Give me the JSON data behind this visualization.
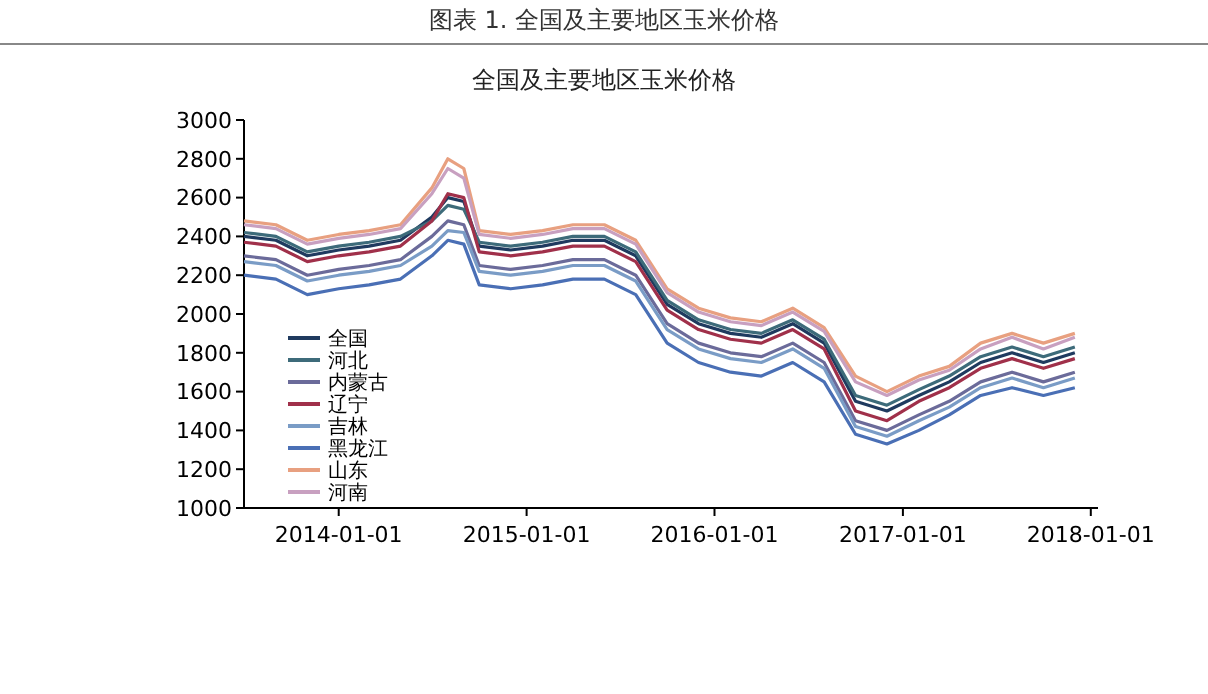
{
  "chart_data": {
    "type": "line",
    "title": "图表 1. 全国及主要地区玉米价格",
    "subtitle": "全国及主要地区玉米价格",
    "x": [
      "2013-07",
      "2013-09",
      "2013-11",
      "2014-01",
      "2014-03",
      "2014-05",
      "2014-07",
      "2014-08",
      "2014-09",
      "2014-10",
      "2014-12",
      "2015-02",
      "2015-04",
      "2015-06",
      "2015-08",
      "2015-10",
      "2015-12",
      "2016-02",
      "2016-04",
      "2016-06",
      "2016-08",
      "2016-10",
      "2016-12",
      "2017-02",
      "2017-04",
      "2017-06",
      "2017-08",
      "2017-10",
      "2017-12"
    ],
    "xlim": [
      "2013-07-01",
      "2018-01-15"
    ],
    "xticks": [
      "2014-01-01",
      "2015-01-01",
      "2016-01-01",
      "2017-01-01",
      "2018-01-01"
    ],
    "ylim": [
      1000,
      3000
    ],
    "yticks": [
      1000,
      1200,
      1400,
      1600,
      1800,
      2000,
      2200,
      2400,
      2600,
      2800,
      3000
    ],
    "legend": "bottom left",
    "grid": false,
    "line_style": "solid",
    "series": [
      {
        "name": "全国",
        "color": "#1f3a5f",
        "values": [
          2400,
          2380,
          2300,
          2330,
          2350,
          2380,
          2500,
          2600,
          2580,
          2350,
          2330,
          2350,
          2380,
          2380,
          2300,
          2050,
          1950,
          1900,
          1880,
          1950,
          1850,
          1550,
          1500,
          1580,
          1650,
          1750,
          1800,
          1750,
          1800
        ]
      },
      {
        "name": "河北",
        "color": "#3d6b7a",
        "values": [
          2420,
          2400,
          2320,
          2350,
          2370,
          2400,
          2480,
          2560,
          2540,
          2370,
          2350,
          2370,
          2400,
          2400,
          2320,
          2070,
          1970,
          1920,
          1900,
          1970,
          1870,
          1580,
          1530,
          1610,
          1680,
          1780,
          1830,
          1780,
          1830
        ]
      },
      {
        "name": "内蒙古",
        "color": "#6b6b9a",
        "values": [
          2300,
          2280,
          2200,
          2230,
          2250,
          2280,
          2400,
          2480,
          2460,
          2250,
          2230,
          2250,
          2280,
          2280,
          2200,
          1950,
          1850,
          1800,
          1780,
          1850,
          1750,
          1450,
          1400,
          1480,
          1550,
          1650,
          1700,
          1650,
          1700
        ]
      },
      {
        "name": "辽宁",
        "color": "#a0304a",
        "values": [
          2370,
          2350,
          2270,
          2300,
          2320,
          2350,
          2480,
          2620,
          2600,
          2320,
          2300,
          2320,
          2350,
          2350,
          2270,
          2020,
          1920,
          1870,
          1850,
          1920,
          1820,
          1500,
          1450,
          1550,
          1620,
          1720,
          1770,
          1720,
          1770
        ]
      },
      {
        "name": "吉林",
        "color": "#7a9cc6",
        "values": [
          2270,
          2250,
          2170,
          2200,
          2220,
          2250,
          2350,
          2430,
          2420,
          2220,
          2200,
          2220,
          2250,
          2250,
          2170,
          1920,
          1820,
          1770,
          1750,
          1820,
          1720,
          1420,
          1370,
          1450,
          1520,
          1620,
          1670,
          1620,
          1670
        ]
      },
      {
        "name": "黑龙江",
        "color": "#4a6fb5",
        "values": [
          2200,
          2180,
          2100,
          2130,
          2150,
          2180,
          2300,
          2380,
          2360,
          2150,
          2130,
          2150,
          2180,
          2180,
          2100,
          1850,
          1750,
          1700,
          1680,
          1750,
          1650,
          1380,
          1330,
          1400,
          1480,
          1580,
          1620,
          1580,
          1620
        ]
      },
      {
        "name": "山东",
        "color": "#e8a080",
        "values": [
          2480,
          2460,
          2380,
          2410,
          2430,
          2460,
          2650,
          2800,
          2750,
          2430,
          2410,
          2430,
          2460,
          2460,
          2380,
          2130,
          2030,
          1980,
          1960,
          2030,
          1930,
          1680,
          1600,
          1680,
          1730,
          1850,
          1900,
          1850,
          1900
        ]
      },
      {
        "name": "河南",
        "color": "#c8a0c0",
        "values": [
          2460,
          2440,
          2360,
          2390,
          2410,
          2440,
          2620,
          2750,
          2700,
          2410,
          2390,
          2410,
          2440,
          2440,
          2360,
          2110,
          2010,
          1960,
          1940,
          2010,
          1910,
          1650,
          1580,
          1660,
          1710,
          1820,
          1880,
          1820,
          1880
        ]
      }
    ]
  }
}
